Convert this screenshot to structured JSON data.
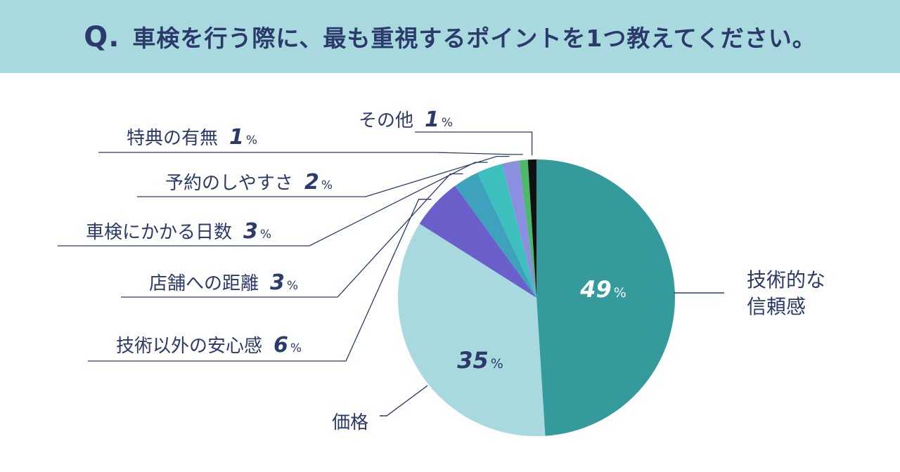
{
  "header": {
    "q_mark": "Q.",
    "question": "車検を行う際に、最も重視するポイントを1つ教えてください。"
  },
  "chart_data": {
    "type": "pie",
    "title": "車検を行う際に、最も重視するポイントを1つ教えてください。",
    "unit": "%",
    "slices": [
      {
        "label": "技術的な信頼感",
        "label_lines": [
          "技術的な",
          "信頼感"
        ],
        "value": 49,
        "color": "#349a9c"
      },
      {
        "label": "価格",
        "label_lines": [
          "価格"
        ],
        "value": 35,
        "color": "#a8d9df"
      },
      {
        "label": "技術以外の安心感",
        "label_lines": [
          "技術以外の安心感"
        ],
        "value": 6,
        "color": "#6a5fcb"
      },
      {
        "label": "店舗への距離",
        "label_lines": [
          "店舗への距離"
        ],
        "value": 3,
        "color": "#3ea2bd"
      },
      {
        "label": "車検にかかる日数",
        "label_lines": [
          "車検にかかる日数"
        ],
        "value": 3,
        "color": "#3dc0bd"
      },
      {
        "label": "予約のしやすさ",
        "label_lines": [
          "予約のしやすさ"
        ],
        "value": 2,
        "color": "#8b8fe0"
      },
      {
        "label": "特典の有無",
        "label_lines": [
          "特典の有無"
        ],
        "value": 1,
        "color": "#4bb86a"
      },
      {
        "label": "その他",
        "label_lines": [
          "その他"
        ],
        "value": 1,
        "color": "#111111"
      }
    ]
  }
}
